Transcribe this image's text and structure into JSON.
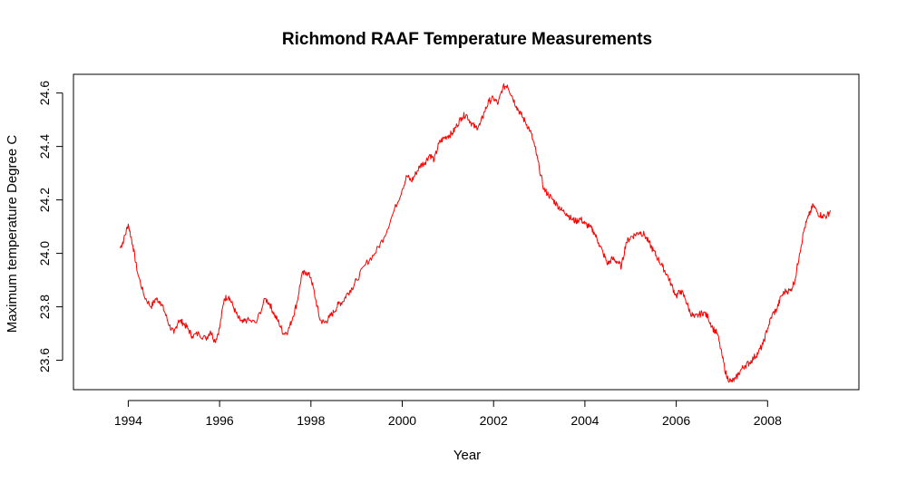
{
  "chart_data": {
    "type": "line",
    "title": "Richmond RAAF Temperature Measurements",
    "xlabel": "Year",
    "ylabel": "Maximum temperature Degree C",
    "xlim": [
      1992.8,
      2010.0
    ],
    "ylim": [
      23.49,
      24.67
    ],
    "x_ticks": [
      1994,
      1996,
      1998,
      2000,
      2002,
      2004,
      2006,
      2008
    ],
    "y_ticks": [
      23.6,
      23.8,
      24.0,
      24.2,
      24.4,
      24.6
    ],
    "grid": false,
    "colors": {
      "series": "#ff0000",
      "axes": "#000000"
    },
    "series": [
      {
        "x": [
          1993.82,
          1993.9,
          1994.0,
          1994.1,
          1994.2,
          1994.35,
          1994.5,
          1994.6,
          1994.7,
          1994.8,
          1994.9,
          1995.0,
          1995.1,
          1995.2,
          1995.3,
          1995.4,
          1995.55,
          1995.7,
          1995.8,
          1995.9,
          1996.0,
          1996.1,
          1996.2,
          1996.3,
          1996.4,
          1996.5,
          1996.6,
          1996.8,
          1997.0,
          1997.1,
          1997.2,
          1997.3,
          1997.4,
          1997.5,
          1997.6,
          1997.7,
          1997.8,
          1997.9,
          1998.0,
          1998.1,
          1998.2,
          1998.3,
          1998.4,
          1998.5,
          1998.6,
          1998.7,
          1998.8,
          1998.9,
          1999.0,
          1999.2,
          1999.4,
          1999.6,
          1999.8,
          2000.0,
          2000.1,
          2000.2,
          2000.3,
          2000.4,
          2000.5,
          2000.6,
          2000.7,
          2000.8,
          2000.9,
          2001.0,
          2001.1,
          2001.2,
          2001.3,
          2001.4,
          2001.5,
          2001.6,
          2001.7,
          2001.8,
          2001.9,
          2002.0,
          2002.1,
          2002.2,
          2002.3,
          2002.4,
          2002.5,
          2002.6,
          2002.7,
          2002.8,
          2002.9,
          2003.0,
          2003.1,
          2003.2,
          2003.3,
          2003.4,
          2003.5,
          2003.6,
          2003.7,
          2003.8,
          2003.9,
          2004.0,
          2004.1,
          2004.2,
          2004.3,
          2004.4,
          2004.5,
          2004.6,
          2004.7,
          2004.8,
          2004.9,
          2005.0,
          2005.1,
          2005.2,
          2005.3,
          2005.4,
          2005.5,
          2005.6,
          2005.7,
          2005.8,
          2005.9,
          2006.0,
          2006.1,
          2006.2,
          2006.3,
          2006.4,
          2006.5,
          2006.6,
          2006.7,
          2006.8,
          2006.9,
          2007.0,
          2007.1,
          2007.2,
          2007.3,
          2007.4,
          2007.5,
          2007.6,
          2007.7,
          2007.8,
          2007.9,
          2008.0,
          2008.1,
          2008.2,
          2008.3,
          2008.4,
          2008.5,
          2008.6,
          2008.7,
          2008.8,
          2008.9,
          2009.0,
          2009.1,
          2009.2,
          2009.3,
          2009.38
        ],
        "y": [
          24.02,
          24.05,
          24.11,
          24.03,
          23.93,
          23.84,
          23.8,
          23.83,
          23.82,
          23.78,
          23.73,
          23.7,
          23.75,
          23.74,
          23.72,
          23.69,
          23.7,
          23.68,
          23.71,
          23.67,
          23.72,
          23.83,
          23.84,
          23.8,
          23.76,
          23.74,
          23.75,
          23.74,
          23.83,
          23.81,
          23.77,
          23.74,
          23.7,
          23.71,
          23.76,
          23.82,
          23.92,
          23.93,
          23.91,
          23.83,
          23.75,
          23.74,
          23.76,
          23.78,
          23.81,
          23.82,
          23.85,
          23.87,
          23.9,
          23.96,
          24.0,
          24.06,
          24.15,
          24.24,
          24.29,
          24.27,
          24.3,
          24.33,
          24.34,
          24.37,
          24.35,
          24.41,
          24.43,
          24.44,
          24.45,
          24.48,
          24.51,
          24.52,
          24.49,
          24.47,
          24.48,
          24.53,
          24.57,
          24.58,
          24.56,
          24.62,
          24.63,
          24.59,
          24.55,
          24.52,
          24.49,
          24.46,
          24.4,
          24.32,
          24.24,
          24.22,
          24.2,
          24.18,
          24.16,
          24.15,
          24.13,
          24.12,
          24.13,
          24.11,
          24.1,
          24.08,
          24.04,
          24.0,
          23.96,
          23.98,
          23.97,
          23.95,
          24.04,
          24.06,
          24.07,
          24.08,
          24.07,
          24.04,
          24.01,
          23.98,
          23.95,
          23.92,
          23.88,
          23.84,
          23.86,
          23.83,
          23.78,
          23.76,
          23.77,
          23.78,
          23.76,
          23.72,
          23.7,
          23.62,
          23.54,
          23.52,
          23.53,
          23.56,
          23.58,
          23.59,
          23.61,
          23.63,
          23.66,
          23.72,
          23.77,
          23.79,
          23.84,
          23.86,
          23.86,
          23.9,
          24.0,
          24.09,
          24.14,
          24.18,
          24.15,
          24.14,
          24.14,
          24.16
        ]
      }
    ]
  }
}
